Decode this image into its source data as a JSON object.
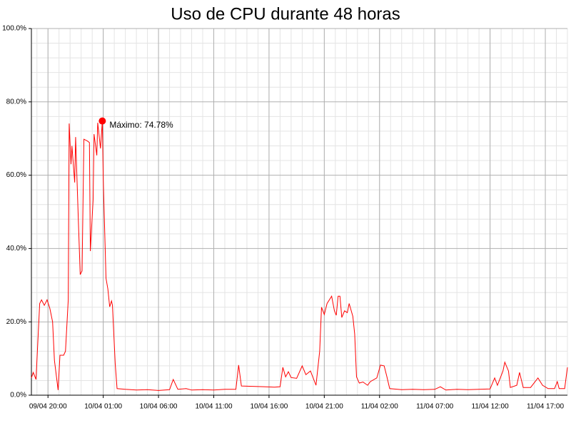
{
  "chart_data": {
    "type": "line",
    "title": "Uso de CPU durante 48 horas",
    "x": [
      "09/04 18:30",
      "09/04 18:40",
      "09/04 18:55",
      "09/04 19:15",
      "09/04 19:25",
      "09/04 19:40",
      "09/04 19:55",
      "09/04 20:10",
      "09/04 20:25",
      "09/04 20:35",
      "09/04 20:55",
      "09/04 21:05",
      "09/04 21:25",
      "09/04 21:35",
      "09/04 21:50",
      "09/04 21:55",
      "09/04 22:05",
      "09/04 22:10",
      "09/04 22:25",
      "09/04 22:30",
      "09/04 22:45",
      "09/04 22:55",
      "09/04 23:05",
      "09/04 23:15",
      "09/04 23:35",
      "09/04 23:45",
      "09/04 23:50",
      "10/04 00:05",
      "10/04 00:10",
      "10/04 00:25",
      "10/04 00:30",
      "10/04 00:45",
      "10/04 00:55",
      "10/04 01:00",
      "10/04 01:15",
      "10/04 01:25",
      "10/04 01:35",
      "10/04 01:45",
      "10/04 01:50",
      "10/04 02:05",
      "10/04 02:15",
      "10/04 03:00",
      "10/04 04:00",
      "10/04 05:00",
      "10/04 06:00",
      "10/04 07:00",
      "10/04 07:20",
      "10/04 07:45",
      "10/04 08:30",
      "10/04 09:00",
      "10/04 10:00",
      "10/04 11:00",
      "10/04 12:00",
      "10/04 13:00",
      "10/04 13:15",
      "10/04 13:30",
      "10/04 14:30",
      "10/04 15:30",
      "10/04 16:30",
      "10/04 17:00",
      "10/04 17:15",
      "10/04 17:30",
      "10/04 17:45",
      "10/04 18:00",
      "10/04 18:30",
      "10/04 19:00",
      "10/04 19:20",
      "10/04 19:45",
      "10/04 20:15",
      "10/04 20:35",
      "10/04 20:45",
      "10/04 21:00",
      "10/04 21:15",
      "10/04 21:40",
      "10/04 21:55",
      "10/04 22:05",
      "10/04 22:15",
      "10/04 22:25",
      "10/04 22:35",
      "10/04 22:50",
      "10/04 23:05",
      "10/04 23:15",
      "10/04 23:35",
      "10/04 23:45",
      "10/04 23:55",
      "11/04 00:10",
      "11/04 00:30",
      "11/04 00:55",
      "11/04 01:10",
      "11/04 01:45",
      "11/04 02:05",
      "11/04 02:25",
      "11/04 02:40",
      "11/04 02:55",
      "11/04 04:00",
      "11/04 05:00",
      "11/04 06:00",
      "11/04 07:00",
      "11/04 07:30",
      "11/04 08:00",
      "11/04 09:00",
      "11/04 10:00",
      "11/04 11:00",
      "11/04 12:00",
      "11/04 12:25",
      "11/04 12:40",
      "11/04 13:10",
      "11/04 13:20",
      "11/04 13:40",
      "11/04 13:50",
      "11/04 14:25",
      "11/04 14:40",
      "11/04 15:00",
      "11/04 15:40",
      "11/04 16:20",
      "11/04 16:45",
      "11/04 17:15",
      "11/04 17:50",
      "11/04 18:05",
      "11/04 18:15",
      "11/04 18:45",
      "11/04 19:00"
    ],
    "series": [
      {
        "color": "#ff0000",
        "values": [
          4.7,
          6.2,
          4.3,
          25.0,
          26.0,
          24.5,
          26.0,
          23.7,
          20.0,
          9.5,
          1.4,
          10.9,
          10.9,
          12.0,
          26.0,
          74.1,
          63.0,
          68.0,
          58.0,
          70.4,
          47.5,
          32.9,
          33.9,
          69.8,
          69.3,
          68.9,
          39.3,
          53.3,
          71.2,
          65.4,
          74.3,
          67.3,
          74.78,
          59.0,
          31.9,
          29.0,
          24.1,
          25.7,
          24.5,
          8.6,
          1.8,
          1.6,
          1.4,
          1.5,
          1.3,
          1.5,
          4.3,
          1.6,
          1.8,
          1.4,
          1.5,
          1.4,
          1.6,
          1.6,
          8.2,
          2.5,
          2.4,
          2.3,
          2.2,
          2.3,
          7.6,
          5.0,
          6.4,
          4.8,
          4.6,
          8.0,
          5.6,
          6.6,
          2.7,
          12.0,
          24.0,
          22.0,
          25.0,
          27.0,
          23.0,
          21.8,
          27.0,
          27.0,
          21.2,
          23.0,
          22.5,
          25.0,
          21.5,
          16.7,
          5.0,
          3.3,
          3.6,
          2.7,
          3.7,
          4.7,
          8.2,
          8.0,
          5.0,
          1.8,
          1.5,
          1.6,
          1.5,
          1.6,
          2.3,
          1.4,
          1.6,
          1.5,
          1.6,
          1.7,
          4.7,
          2.7,
          6.6,
          9.0,
          6.6,
          2.1,
          2.7,
          6.2,
          2.1,
          2.1,
          4.7,
          2.7,
          1.8,
          1.8,
          3.7,
          1.8,
          1.8,
          7.6
        ]
      }
    ],
    "annotation": "Máximo: 74.78%",
    "xlim": [
      "09/04 18:30",
      "11/04 19:00"
    ],
    "xticks": [
      "09/04 20:00",
      "10/04 01:00",
      "10/04 06:00",
      "10/04 11:00",
      "10/04 16:00",
      "10/04 21:00",
      "11/04 02:00",
      "11/04 07:00",
      "11/04 12:00",
      "11/04 17:00"
    ],
    "ylim": [
      0,
      100
    ],
    "yticks": [
      {
        "value": 0,
        "label": "0.0%"
      },
      {
        "value": 20,
        "label": "20.0%"
      },
      {
        "value": 40,
        "label": "40.0%"
      },
      {
        "value": 60,
        "label": "60.0%"
      },
      {
        "value": 80,
        "label": "80.0%"
      },
      {
        "value": 100,
        "label": "100.0%"
      }
    ],
    "grid": true,
    "minor_grid": true
  }
}
